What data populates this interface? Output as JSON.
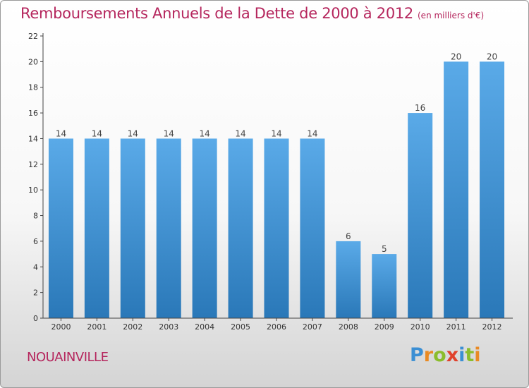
{
  "title": "Remboursements Annuels de la Dette de 2000 à 2012",
  "unit": "(en milliers d'€)",
  "commune": "NOUAINVILLE",
  "brand": {
    "name": "Proxiti",
    "letters": [
      {
        "ch": "P",
        "color": "#3b8fd4"
      },
      {
        "ch": "r",
        "color": "#e98a23"
      },
      {
        "ch": "o",
        "color": "#8bbd2c"
      },
      {
        "ch": "x",
        "color": "#e0412c"
      },
      {
        "ch": "i",
        "color": "#3b8fd4"
      },
      {
        "ch": "t",
        "color": "#8bbd2c"
      },
      {
        "ch": "i",
        "color": "#e98a23"
      }
    ]
  },
  "colors": {
    "title": "#b5265d",
    "bar_top": "#5aaae8",
    "bar_bottom": "#2a78b8",
    "axis": "#444444"
  },
  "chart_data": {
    "type": "bar",
    "categories": [
      "2000",
      "2001",
      "2002",
      "2003",
      "2004",
      "2005",
      "2006",
      "2007",
      "2008",
      "2009",
      "2010",
      "2011",
      "2012"
    ],
    "values": [
      14,
      14,
      14,
      14,
      14,
      14,
      14,
      14,
      6,
      5,
      16,
      20,
      20
    ],
    "data_labels": [
      "14",
      "14",
      "14",
      "14",
      "14",
      "14",
      "14",
      "14",
      "6",
      "5",
      "16",
      "20",
      "20"
    ],
    "yticks": [
      0,
      2,
      4,
      6,
      8,
      10,
      12,
      14,
      16,
      18,
      20,
      22
    ],
    "ylim": [
      0,
      22
    ],
    "grid": false,
    "legend": "none"
  }
}
